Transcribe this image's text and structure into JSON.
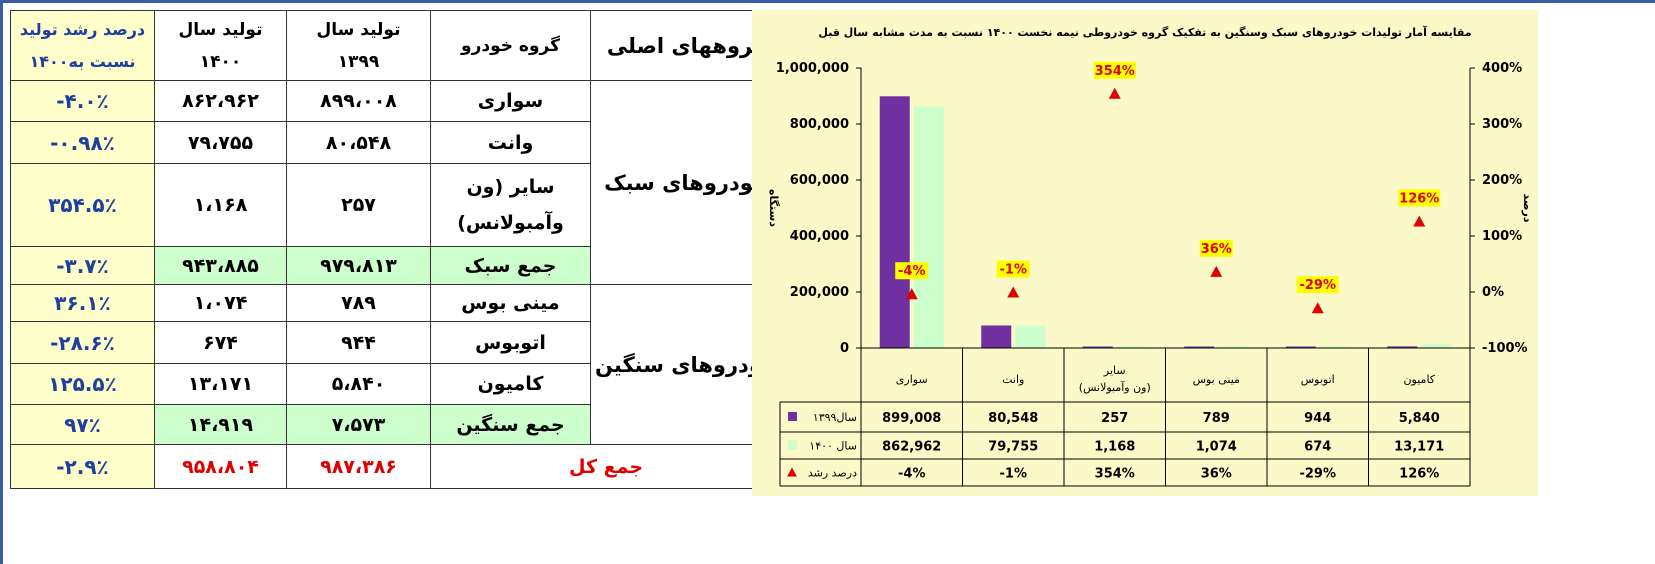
{
  "table": {
    "headers": {
      "main_groups": "گروههای اصلی",
      "vehicle_group": "گروه خودرو",
      "prod_1399": [
        "تولید سال",
        "۱۳۹۹"
      ],
      "prod_1400": [
        "تولید سال",
        "۱۴۰۰"
      ],
      "growth": [
        "درصد رشد تولید",
        "۱۴۰۰نسبت به"
      ]
    },
    "light_group": "خودروهای سبک",
    "heavy_group": "خودروهای سنگین",
    "rows": [
      {
        "name": "سواری",
        "y1399": "۸۹۹،۰۰۸",
        "y1400": "۸۶۲،۹۶۲",
        "growth": "-۴.۰٪"
      },
      {
        "name": "وانت",
        "y1399": "۸۰،۵۴۸",
        "y1400": "۷۹،۷۵۵",
        "growth": "-۰.۹۸٪"
      },
      {
        "name": "سایر (ون وآمبولانس)",
        "y1399": "۲۵۷",
        "y1400": "۱،۱۶۸",
        "growth": "۳۵۴.۵٪"
      },
      {
        "name": "جمع سبک",
        "y1399": "۹۷۹،۸۱۳",
        "y1400": "۹۴۳،۸۸۵",
        "growth": "-۳.۷٪"
      },
      {
        "name": "مینی بوس",
        "y1399": "۷۸۹",
        "y1400": "۱،۰۷۴",
        "growth": "۳۶.۱٪"
      },
      {
        "name": "اتوبوس",
        "y1399": "۹۴۴",
        "y1400": "۶۷۴",
        "growth": "-۲۸.۶٪"
      },
      {
        "name": "کامیون",
        "y1399": "۵،۸۴۰",
        "y1400": "۱۳،۱۷۱",
        "growth": "۱۲۵.۵٪"
      },
      {
        "name": "جمع سنگین",
        "y1399": "۷،۵۷۳",
        "y1400": "۱۴،۹۱۹",
        "growth": "۹۷٪"
      }
    ],
    "total": {
      "name": "جمع کل",
      "y1399": "۹۸۷،۳۸۶",
      "y1400": "۹۵۸،۸۰۴",
      "growth": "-۲.۹٪"
    },
    "colors": {
      "growth_bg": "#ffffcc",
      "growth_text": "#1e3fa0",
      "sum_bg": "#ccffcc",
      "total_text": "#e00000"
    }
  },
  "chart": {
    "title": "مقایسه آمار تولیدات خودروهای سبک وسنگین به تفکیک گروه خودروطی نیمه نخست ۱۴۰۰ نسبت به مدت مشابه سال قبل"
  },
  "chart_data": {
    "type": "bar",
    "categories": [
      "سواری",
      "وانت",
      "سایر|(ون وآمبولانس)",
      "مینی بوس",
      "اتوبوس",
      "کامیون"
    ],
    "series": [
      {
        "name": "سال۱۳۹۹",
        "values": [
          899008,
          80548,
          257,
          789,
          944,
          5840
        ],
        "labels": [
          "899,008",
          "80,548",
          "257",
          "789",
          "944",
          "5,840"
        ],
        "color": "#7030a0"
      },
      {
        "name": "سال ۱۴۰۰",
        "values": [
          862962,
          79755,
          1168,
          1074,
          674,
          13171
        ],
        "labels": [
          "862,962",
          "79,755",
          "1,168",
          "1,074",
          "674",
          "13,171"
        ],
        "color": "#ccffcc"
      }
    ],
    "growth_series": {
      "name": "درصد رشد",
      "values": [
        -4,
        -1,
        354,
        36,
        -29,
        126
      ],
      "labels": [
        "-4%",
        "-1%",
        "354%",
        "36%",
        "-29%",
        "126%"
      ],
      "color": "#e00000",
      "marker": "triangle",
      "label_bg": "#ffff00"
    },
    "ylabel": "دستگاه",
    "y2label": "درصد",
    "ylim": [
      0,
      1000000
    ],
    "y2lim": [
      -100,
      400
    ],
    "yticks": [
      "0",
      "200,000",
      "400,000",
      "600,000",
      "800,000",
      "1,000,000"
    ],
    "y2ticks": [
      "-100%",
      "0%",
      "100%",
      "200%",
      "300%",
      "400%"
    ],
    "legend": "data-table",
    "grid": false
  }
}
